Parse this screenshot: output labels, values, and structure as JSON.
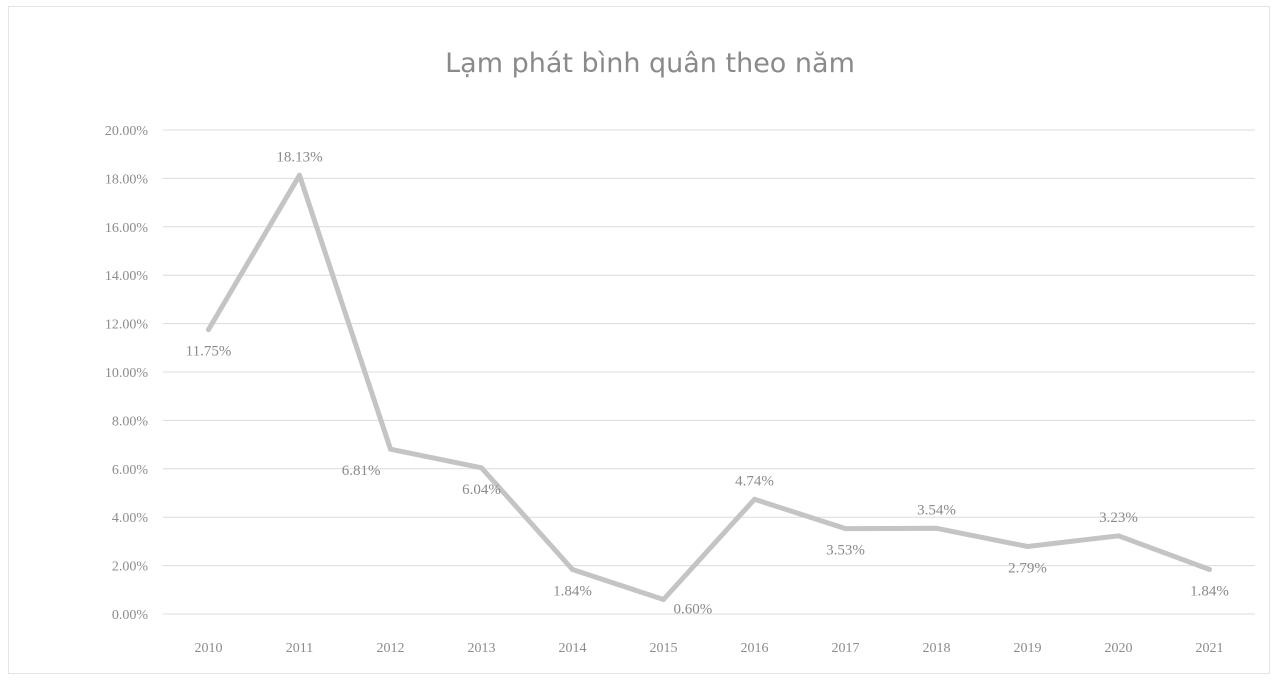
{
  "chart_data": {
    "type": "line",
    "title": "Lạm phát bình quân theo năm",
    "categories": [
      "2010",
      "2011",
      "2012",
      "2013",
      "2014",
      "2015",
      "2016",
      "2017",
      "2018",
      "2019",
      "2020",
      "2021"
    ],
    "series": [
      {
        "values": [
          11.75,
          18.13,
          6.81,
          6.04,
          1.84,
          0.6,
          4.74,
          3.53,
          3.54,
          2.79,
          3.23,
          1.84
        ],
        "labels": [
          "11.75%",
          "18.13%",
          "6.81%",
          "6.04%",
          "1.84%",
          "0.60%",
          "4.74%",
          "3.53%",
          "3.54%",
          "2.79%",
          "3.23%",
          "1.84%"
        ],
        "label_positions": [
          "below",
          "above",
          "left",
          "below",
          "below",
          "right",
          "above",
          "below",
          "above",
          "below",
          "above",
          "below"
        ],
        "color": "#c4c4c4"
      }
    ],
    "y_ticks": [
      "0.00%",
      "2.00%",
      "4.00%",
      "6.00%",
      "8.00%",
      "10.00%",
      "12.00%",
      "14.00%",
      "16.00%",
      "18.00%",
      "20.00%"
    ],
    "ylim": [
      0,
      20
    ],
    "grid": true,
    "legend": "none",
    "xlabel": "",
    "ylabel": ""
  }
}
